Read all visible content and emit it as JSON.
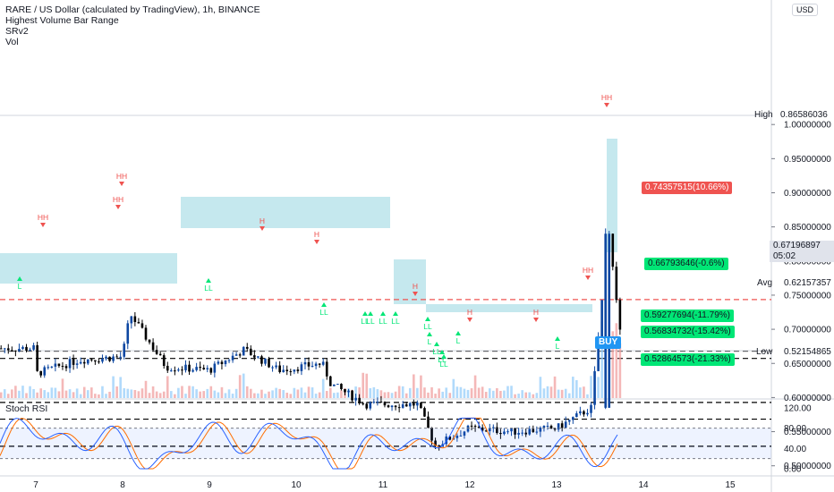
{
  "header": {
    "title": "RARE / US Dollar (calculated by TradingView), 1h, BINANCE",
    "indicators": [
      "Highest Volume Bar Range",
      "SRv2",
      "Vol"
    ],
    "currency": "USD"
  },
  "rsi": {
    "title": "Stoch RSI",
    "ticks": [
      "120.00",
      "80.00",
      "40.00",
      "0.00"
    ]
  },
  "price_axis": {
    "ticks": [
      "1.00000000",
      "0.95000000",
      "0.90000000",
      "0.85000000",
      "0.80000000",
      "0.75000000",
      "0.70000000",
      "0.65000000",
      "0.60000000",
      "0.55000000",
      "0.50000000"
    ],
    "high_label": "High",
    "high_value": "0.86586036",
    "avg_label": "Avg",
    "avg_value": "0.62157357",
    "low_label": "Low",
    "low_value": "0.52154865",
    "last_price": "0.67196897",
    "countdown": "05:02"
  },
  "time_axis": [
    "7",
    "8",
    "9",
    "10",
    "11",
    "12",
    "13",
    "14",
    "15"
  ],
  "levels": {
    "red": {
      "price": 0.74357515,
      "label": "0.74357515(10.66%)"
    },
    "green": [
      {
        "price": 0.66793646,
        "label": "0.66793646(-0.6%)"
      },
      {
        "price": 0.59277694,
        "label": "0.59277694(-11.79%)"
      },
      {
        "price": 0.56834732,
        "label": "0.56834732(-15.42%)"
      },
      {
        "price": 0.52864573,
        "label": "0.52864573(-21.33%)"
      }
    ]
  },
  "signal": {
    "label": "BUY"
  },
  "colors": {
    "up": "#0d47a1",
    "down": "#000000",
    "zone": "#9fd9e3",
    "red": "#ef5350",
    "green": "#00e676",
    "blue": "#2196f3",
    "rsiK": "#2962ff",
    "rsiD": "#ff6d00"
  },
  "chart_data": {
    "type": "candlestick",
    "title": "RARE / US Dollar (calculated by TradingView), 1h, BINANCE",
    "ylim": [
      0.47,
      1.02
    ],
    "close_approx": [
      {
        "x": "7",
        "y": 0.635
      },
      {
        "x": "7.5",
        "y": 0.655
      },
      {
        "x": "8",
        "y": 0.66
      },
      {
        "x": "8.05",
        "y": 0.7
      },
      {
        "x": "8.1",
        "y": 0.72
      },
      {
        "x": "8.5",
        "y": 0.645
      },
      {
        "x": "9",
        "y": 0.64
      },
      {
        "x": "9.4",
        "y": 0.67
      },
      {
        "x": "9.8",
        "y": 0.64
      },
      {
        "x": "10.3",
        "y": 0.65
      },
      {
        "x": "10.4",
        "y": 0.62
      },
      {
        "x": "10.8",
        "y": 0.59
      },
      {
        "x": "11.4",
        "y": 0.59
      },
      {
        "x": "11.6",
        "y": 0.53
      },
      {
        "x": "12",
        "y": 0.555
      },
      {
        "x": "12.5",
        "y": 0.55
      },
      {
        "x": "13",
        "y": 0.555
      },
      {
        "x": "13.4",
        "y": 0.585
      },
      {
        "x": "13.6",
        "y": 0.84
      },
      {
        "x": "13.75",
        "y": 0.672
      }
    ],
    "pivot_labels": [
      "HH",
      "HH",
      "H",
      "H",
      "H",
      "H",
      "H",
      "HH",
      "HH",
      "LL",
      "LL",
      "LL",
      "LL",
      "LL",
      "LL",
      "L",
      "LL",
      "L",
      "L",
      "LL",
      "LL",
      "LL",
      "L",
      "L"
    ]
  }
}
